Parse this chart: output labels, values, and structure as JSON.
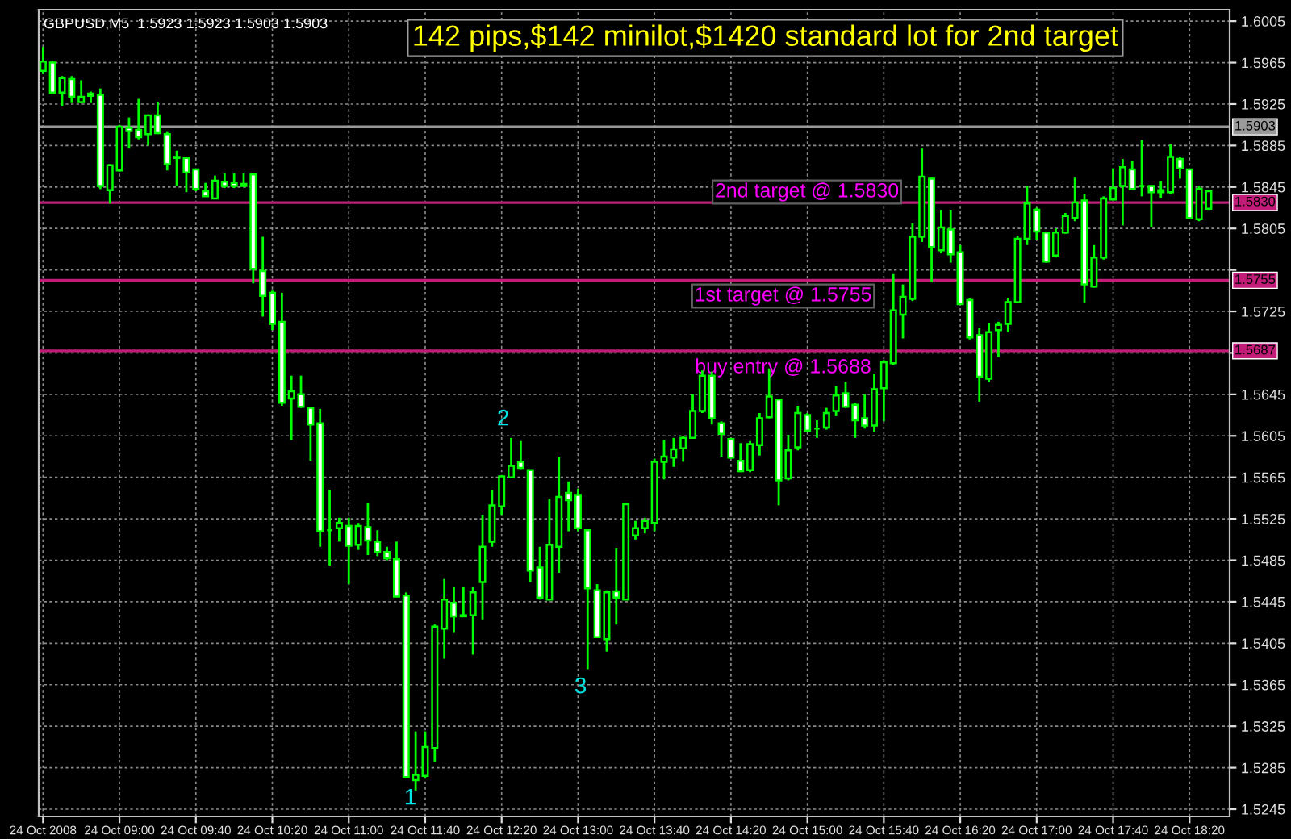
{
  "chart_data": {
    "type": "candlestick",
    "title": "142 pips,$142 minilot,$1420 standard lot for 2nd target",
    "subtitle": "GBPUSD,M5  1.5923 1.5923 1.5903 1.5903",
    "color": "#00ff00",
    "categories": [
      "24 Oct 2008",
      null,
      null,
      null,
      null,
      null,
      null,
      null,
      "24 Oct 09:00",
      null,
      null,
      null,
      null,
      null,
      null,
      null,
      "24 Oct 09:40",
      null,
      null,
      null,
      null,
      null,
      null,
      null,
      "24 Oct 10:20",
      null,
      null,
      null,
      null,
      null,
      null,
      null,
      "24 Oct 11:00",
      null,
      null,
      null,
      null,
      null,
      null,
      null,
      "24 Oct 11:40",
      null,
      null,
      null,
      null,
      null,
      null,
      null,
      "24 Oct 12:20",
      null,
      null,
      null,
      null,
      null,
      null,
      null,
      "24 Oct 13:00",
      null,
      null,
      null,
      null,
      null,
      null,
      null,
      "24 Oct 13:40",
      null,
      null,
      null,
      null,
      null,
      null,
      null,
      "24 Oct 14:20",
      null,
      null,
      null,
      null,
      null,
      null,
      null,
      "24 Oct 15:00",
      null,
      null,
      null,
      null,
      null,
      null,
      null,
      "24 Oct 15:40",
      null,
      null,
      null,
      null,
      null,
      null,
      null,
      "24 Oct 16:20",
      null,
      null,
      null,
      null,
      null,
      null,
      null,
      "24 Oct 17:00",
      null,
      null,
      null,
      null,
      null,
      null,
      null,
      "24 Oct 17:40",
      null,
      null,
      null,
      null,
      null,
      null,
      null,
      "24 Oct 18:20",
      null,
      null
    ],
    "ohlc": [
      [
        1.5957,
        1.598,
        1.5954,
        1.5966
      ],
      [
        1.5965,
        1.5966,
        1.5936,
        1.5936
      ],
      [
        1.5936,
        1.5952,
        1.5923,
        1.595
      ],
      [
        1.5949,
        1.5952,
        1.5926,
        1.5932
      ],
      [
        1.5927,
        1.5948,
        1.5926,
        1.5932
      ],
      [
        1.5935,
        1.5937,
        1.5926,
        1.5933
      ],
      [
        1.5934,
        1.594,
        1.5843,
        1.5846
      ],
      [
        1.5842,
        1.5867,
        1.5829,
        1.5866
      ],
      [
        1.5861,
        1.5905,
        1.586,
        1.5903
      ],
      [
        1.5902,
        1.5912,
        1.5882,
        1.5899
      ],
      [
        1.59,
        1.593,
        1.5891,
        1.5893
      ],
      [
        1.5896,
        1.5915,
        1.5885,
        1.5914
      ],
      [
        1.5914,
        1.5927,
        1.5896,
        1.5897
      ],
      [
        1.5896,
        1.5898,
        1.5861,
        1.5867
      ],
      [
        1.5874,
        1.588,
        1.5846,
        1.5873
      ],
      [
        1.5873,
        1.5874,
        1.584,
        1.5859
      ],
      [
        1.5862,
        1.5862,
        1.5841,
        1.5843
      ],
      [
        1.5841,
        1.5849,
        1.5836,
        1.5836
      ],
      [
        1.5834,
        1.5856,
        1.5834,
        1.5851
      ],
      [
        1.585,
        1.5858,
        1.5844,
        1.5846
      ],
      [
        1.5849,
        1.5858,
        1.5844,
        1.5846
      ],
      [
        1.5846,
        1.5858,
        1.5846,
        1.5848
      ],
      [
        1.5857,
        1.5858,
        1.5752,
        1.5766
      ],
      [
        1.5764,
        1.5797,
        1.572,
        1.574
      ],
      [
        1.5743,
        1.5745,
        1.5707,
        1.5713
      ],
      [
        1.5715,
        1.5743,
        1.5634,
        1.5637
      ],
      [
        1.5641,
        1.5663,
        1.5601,
        1.5648
      ],
      [
        1.5645,
        1.5663,
        1.5632,
        1.5633
      ],
      [
        1.5632,
        1.5632,
        1.5581,
        1.5616
      ],
      [
        1.5617,
        1.5631,
        1.5498,
        1.5513
      ],
      [
        1.5514,
        1.5553,
        1.548,
        1.5514
      ],
      [
        1.5516,
        1.5526,
        1.5503,
        1.5521
      ],
      [
        1.5518,
        1.5526,
        1.5462,
        1.5499
      ],
      [
        1.55,
        1.5521,
        1.5495,
        1.5518
      ],
      [
        1.5517,
        1.554,
        1.549,
        1.5504
      ],
      [
        1.5503,
        1.5514,
        1.5489,
        1.5493
      ],
      [
        1.5493,
        1.5498,
        1.5485,
        1.5487
      ],
      [
        1.5486,
        1.5503,
        1.545,
        1.545
      ],
      [
        1.5451,
        1.5454,
        1.5276,
        1.5276
      ],
      [
        1.5273,
        1.532,
        1.5263,
        1.5278
      ],
      [
        1.5277,
        1.532,
        1.5275,
        1.5305
      ],
      [
        1.5304,
        1.5423,
        1.5291,
        1.5421
      ],
      [
        1.5419,
        1.5467,
        1.539,
        1.5447
      ],
      [
        1.5444,
        1.5459,
        1.5415,
        1.5431
      ],
      [
        1.5432,
        1.5459,
        1.5431,
        1.5431
      ],
      [
        1.5432,
        1.5459,
        1.5394,
        1.5454
      ],
      [
        1.5464,
        1.5529,
        1.5428,
        1.5498
      ],
      [
        1.5503,
        1.5553,
        1.5498,
        1.5538
      ],
      [
        1.5537,
        1.5567,
        1.5529,
        1.5566
      ],
      [
        1.5565,
        1.5603,
        1.5564,
        1.5576
      ],
      [
        1.558,
        1.56,
        1.5573,
        1.5574
      ],
      [
        1.5572,
        1.5572,
        1.5464,
        1.5475
      ],
      [
        1.5478,
        1.5498,
        1.5447,
        1.5449
      ],
      [
        1.5447,
        1.5544,
        1.5447,
        1.55
      ],
      [
        1.5498,
        1.5585,
        1.5473,
        1.5546
      ],
      [
        1.555,
        1.5561,
        1.5513,
        1.5543
      ],
      [
        1.5548,
        1.5554,
        1.5513,
        1.5516
      ],
      [
        1.5514,
        1.5514,
        1.538,
        1.5458
      ],
      [
        1.5456,
        1.5462,
        1.541,
        1.5411
      ],
      [
        1.5409,
        1.5456,
        1.5397,
        1.5454
      ],
      [
        1.5455,
        1.5497,
        1.5423,
        1.5449
      ],
      [
        1.5447,
        1.554,
        1.5447,
        1.5539
      ],
      [
        1.5509,
        1.5523,
        1.5505,
        1.5516
      ],
      [
        1.5516,
        1.5526,
        1.5511,
        1.5523
      ],
      [
        1.5521,
        1.5583,
        1.5513,
        1.558
      ],
      [
        1.558,
        1.5601,
        1.5563,
        1.5585
      ],
      [
        1.5584,
        1.5603,
        1.5575,
        1.5592
      ],
      [
        1.5593,
        1.5605,
        1.558,
        1.5603
      ],
      [
        1.5603,
        1.5645,
        1.5603,
        1.5629
      ],
      [
        1.5629,
        1.5668,
        1.5627,
        1.5663
      ],
      [
        1.5663,
        1.5667,
        1.5616,
        1.5622
      ],
      [
        1.5617,
        1.5619,
        1.5585,
        1.5607
      ],
      [
        1.5602,
        1.5603,
        1.5583,
        1.5584
      ],
      [
        1.5581,
        1.5598,
        1.557,
        1.5571
      ],
      [
        1.5572,
        1.56,
        1.557,
        1.5597
      ],
      [
        1.5596,
        1.5627,
        1.5586,
        1.5622
      ],
      [
        1.5623,
        1.567,
        1.5622,
        1.5643
      ],
      [
        1.564,
        1.5641,
        1.5538,
        1.5562
      ],
      [
        1.5564,
        1.5606,
        1.5562,
        1.5591
      ],
      [
        1.5594,
        1.5634,
        1.5591,
        1.5627
      ],
      [
        1.5625,
        1.5627,
        1.5609,
        1.561
      ],
      [
        1.5612,
        1.562,
        1.5603,
        1.5612
      ],
      [
        1.5613,
        1.5632,
        1.5611,
        1.5627
      ],
      [
        1.5629,
        1.5653,
        1.5624,
        1.5644
      ],
      [
        1.5646,
        1.5657,
        1.5632,
        1.5633
      ],
      [
        1.5635,
        1.5637,
        1.5603,
        1.562
      ],
      [
        1.5622,
        1.5645,
        1.5612,
        1.5615
      ],
      [
        1.5615,
        1.5665,
        1.5609,
        1.565
      ],
      [
        1.5651,
        1.5678,
        1.5619,
        1.5676
      ],
      [
        1.5675,
        1.5761,
        1.5673,
        1.5726
      ],
      [
        1.5722,
        1.5751,
        1.5699,
        1.5739
      ],
      [
        1.5737,
        1.581,
        1.5735,
        1.5797
      ],
      [
        1.5797,
        1.5882,
        1.5792,
        1.5855
      ],
      [
        1.5853,
        1.5854,
        1.5753,
        1.5787
      ],
      [
        1.5784,
        1.5823,
        1.5781,
        1.5806
      ],
      [
        1.5804,
        1.5823,
        1.5772,
        1.578
      ],
      [
        1.5782,
        1.5789,
        1.5732,
        1.5732
      ],
      [
        1.5736,
        1.5738,
        1.5698,
        1.57
      ],
      [
        1.5702,
        1.5709,
        1.5638,
        1.5662
      ],
      [
        1.566,
        1.5714,
        1.5657,
        1.5705
      ],
      [
        1.5707,
        1.5715,
        1.5681,
        1.5712
      ],
      [
        1.5713,
        1.5738,
        1.5705,
        1.5734
      ],
      [
        1.5734,
        1.5798,
        1.5733,
        1.5795
      ],
      [
        1.5795,
        1.5846,
        1.5789,
        1.5829
      ],
      [
        1.5823,
        1.5825,
        1.5794,
        1.5802
      ],
      [
        1.5801,
        1.5802,
        1.5772,
        1.5773
      ],
      [
        1.5779,
        1.5805,
        1.5777,
        1.5801
      ],
      [
        1.5801,
        1.582,
        1.58,
        1.5817
      ],
      [
        1.5815,
        1.5854,
        1.5812,
        1.583
      ],
      [
        1.5832,
        1.5838,
        1.5733,
        1.5751
      ],
      [
        1.5749,
        1.5789,
        1.5748,
        1.5777
      ],
      [
        1.5777,
        1.5836,
        1.5775,
        1.5834
      ],
      [
        1.5833,
        1.5863,
        1.5832,
        1.5844
      ],
      [
        1.5846,
        1.5872,
        1.5808,
        1.5864
      ],
      [
        1.5862,
        1.587,
        1.5842,
        1.5843
      ],
      [
        1.5846,
        1.589,
        1.5836,
        1.5846
      ],
      [
        1.5846,
        1.5846,
        1.5806,
        1.584
      ],
      [
        1.5842,
        1.5851,
        1.5834,
        1.584
      ],
      [
        1.584,
        1.5886,
        1.5838,
        1.5874
      ],
      [
        1.5872,
        1.5874,
        1.5853,
        1.5863
      ],
      [
        1.5862,
        1.5862,
        1.5815,
        1.5815
      ],
      [
        1.5814,
        1.5846,
        1.5812,
        1.5843
      ],
      [
        1.5824,
        1.5842,
        1.5823,
        1.5841
      ]
    ],
    "ylim": [
      1.5238,
      1.6016
    ],
    "yticks": [
      {
        "value": 1.6005,
        "label": "1.6005"
      },
      {
        "value": 1.5965,
        "label": "1.5965"
      },
      {
        "value": 1.5925,
        "label": "1.5925"
      },
      {
        "value": 1.5885,
        "label": "1.5885"
      },
      {
        "value": 1.5845,
        "label": "1.5845"
      },
      {
        "value": 1.5805,
        "label": "1.5805"
      },
      {
        "value": 1.5765,
        "label": null
      },
      {
        "value": 1.5725,
        "label": "1.5725"
      },
      {
        "value": 1.5685,
        "label": null
      },
      {
        "value": 1.5645,
        "label": "1.5645"
      },
      {
        "value": 1.5605,
        "label": "1.5605"
      },
      {
        "value": 1.5565,
        "label": "1.5565"
      },
      {
        "value": 1.5525,
        "label": "1.5525"
      },
      {
        "value": 1.5485,
        "label": "1.5485"
      },
      {
        "value": 1.5445,
        "label": "1.5445"
      },
      {
        "value": 1.5405,
        "label": "1.5405"
      },
      {
        "value": 1.5365,
        "label": "1.5365"
      },
      {
        "value": 1.5325,
        "label": "1.5325"
      },
      {
        "value": 1.5285,
        "label": "1.5285"
      },
      {
        "value": 1.5245,
        "label": "1.5245"
      }
    ],
    "ref_lines": [
      {
        "axis": "y",
        "value": 1.5903,
        "label": "1.5903",
        "color": "#9a9a9a"
      },
      {
        "axis": "y",
        "value": 1.583,
        "label": "1.5830",
        "color": "#c01c78"
      },
      {
        "axis": "y",
        "value": 1.5755,
        "label": "1.5755",
        "color": "#c01c78"
      },
      {
        "axis": "y",
        "value": 1.5687,
        "label": "1.5687",
        "color": "#c01c78"
      }
    ],
    "annotations": [
      "2nd target @ 1.5830",
      "1st target @ 1.5755",
      "buy entry @ 1.5688",
      "1",
      "2",
      "3"
    ],
    "grid": true,
    "legend": false
  }
}
